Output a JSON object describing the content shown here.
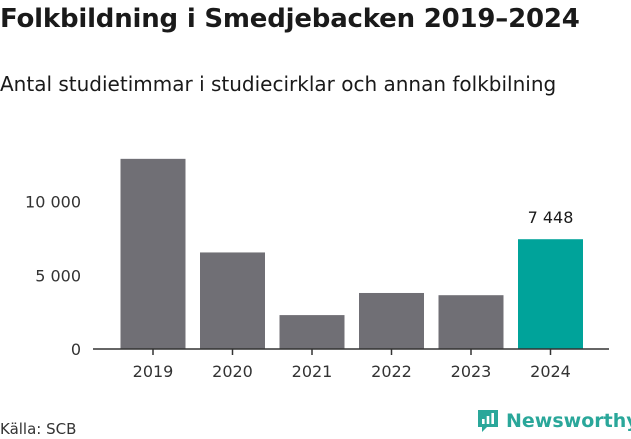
{
  "header": {
    "title": "Folkbildning i Smedjebacken 2019–2024",
    "subtitle": "Antal studietimmar i studiecirklar och annan folkbilning"
  },
  "footer": {
    "source": "Källa: SCB",
    "brand": "Newsworthy",
    "brand_icon": "newsworthy-logo-icon"
  },
  "colors": {
    "bar_default": "#706f75",
    "bar_highlight": "#00a39a",
    "axis": "#333333",
    "brand": "#2aa79a"
  },
  "chart_data": {
    "type": "bar",
    "title": "Folkbildning i Smedjebacken 2019–2024",
    "subtitle": "Antal studietimmar i studiecirklar och annan folkbilning",
    "xlabel": "",
    "ylabel": "",
    "categories": [
      "2019",
      "2020",
      "2021",
      "2022",
      "2023",
      "2024"
    ],
    "values": [
      12900,
      6550,
      2300,
      3800,
      3650,
      7448
    ],
    "highlight_index": 5,
    "data_labels": [
      {
        "index": 5,
        "text": "7 448"
      }
    ],
    "ylim": [
      0,
      13500
    ],
    "yticks": [
      0,
      5000,
      10000
    ],
    "ytick_labels": [
      "0",
      "5 000",
      "10 000"
    ],
    "grid": false,
    "legend": "none"
  }
}
